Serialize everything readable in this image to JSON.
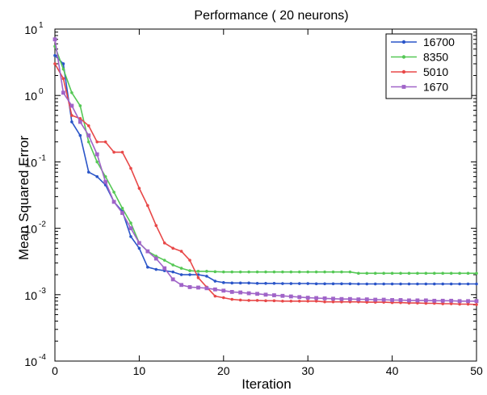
{
  "chart_data": {
    "type": "line",
    "title": "Performance ( 20 neurons)",
    "xlabel": "Iteration",
    "ylabel": "Mean Squared Error",
    "y_scale": "log",
    "xlim": [
      0,
      50
    ],
    "ylim": [
      0.0001,
      10
    ],
    "x_ticks": [
      0,
      10,
      20,
      30,
      40,
      50
    ],
    "y_ticks": [
      {
        "value": 0.0001,
        "base": "10",
        "exp": "-4"
      },
      {
        "value": 0.001,
        "base": "10",
        "exp": "-3"
      },
      {
        "value": 0.01,
        "base": "10",
        "exp": "-2"
      },
      {
        "value": 0.1,
        "base": "10",
        "exp": "-1"
      },
      {
        "value": 1,
        "base": "10",
        "exp": "0"
      },
      {
        "value": 10,
        "base": "10",
        "exp": "1"
      }
    ],
    "grid": false,
    "legend_position": "top-right",
    "series": [
      {
        "name": "16700",
        "color": "#2a55c8",
        "marker": "dot",
        "x": [
          0,
          1,
          2,
          3,
          4,
          5,
          6,
          7,
          8,
          9,
          10,
          11,
          12,
          13,
          14,
          15,
          16,
          17,
          18,
          19,
          20,
          21,
          22,
          23,
          24,
          25,
          26,
          27,
          28,
          29,
          30,
          31,
          32,
          33,
          34,
          35,
          36,
          37,
          38,
          39,
          40,
          41,
          42,
          43,
          44,
          45,
          46,
          47,
          48,
          49,
          50
        ],
        "y": [
          4.0,
          3.0,
          0.4,
          0.25,
          0.07,
          0.06,
          0.045,
          0.025,
          0.018,
          0.0075,
          0.005,
          0.0026,
          0.0024,
          0.0023,
          0.0022,
          0.002,
          0.002,
          0.002,
          0.0019,
          0.0016,
          0.00152,
          0.0015,
          0.0015,
          0.0015,
          0.00148,
          0.00148,
          0.00148,
          0.00147,
          0.00147,
          0.00147,
          0.00147,
          0.00146,
          0.00146,
          0.00146,
          0.00146,
          0.00146,
          0.00145,
          0.00145,
          0.00145,
          0.00145,
          0.00145,
          0.00145,
          0.00145,
          0.00145,
          0.00145,
          0.00145,
          0.00145,
          0.00145,
          0.00145,
          0.00145,
          0.00145
        ]
      },
      {
        "name": "8350",
        "color": "#55c855",
        "marker": "dot",
        "x": [
          0,
          1,
          2,
          3,
          4,
          5,
          6,
          7,
          8,
          9,
          10,
          11,
          12,
          13,
          14,
          15,
          16,
          17,
          18,
          19,
          20,
          21,
          22,
          23,
          24,
          25,
          26,
          27,
          28,
          29,
          30,
          31,
          32,
          33,
          34,
          35,
          36,
          37,
          38,
          39,
          40,
          41,
          42,
          43,
          44,
          45,
          46,
          47,
          48,
          49,
          50
        ],
        "y": [
          5.5,
          2.5,
          1.1,
          0.7,
          0.2,
          0.1,
          0.06,
          0.035,
          0.02,
          0.012,
          0.006,
          0.0045,
          0.0038,
          0.0033,
          0.0028,
          0.0025,
          0.0023,
          0.00225,
          0.00225,
          0.00222,
          0.0022,
          0.0022,
          0.0022,
          0.0022,
          0.0022,
          0.0022,
          0.0022,
          0.0022,
          0.0022,
          0.0022,
          0.0022,
          0.0022,
          0.0022,
          0.0022,
          0.0022,
          0.0022,
          0.0021,
          0.0021,
          0.0021,
          0.0021,
          0.0021,
          0.0021,
          0.0021,
          0.0021,
          0.0021,
          0.0021,
          0.0021,
          0.0021,
          0.0021,
          0.0021,
          0.0021
        ]
      },
      {
        "name": "5010",
        "color": "#e84848",
        "marker": "dot",
        "x": [
          0,
          1,
          2,
          3,
          4,
          5,
          6,
          7,
          8,
          9,
          10,
          11,
          12,
          13,
          14,
          15,
          16,
          17,
          18,
          19,
          20,
          21,
          22,
          23,
          24,
          25,
          26,
          27,
          28,
          29,
          30,
          31,
          32,
          33,
          34,
          35,
          36,
          37,
          38,
          39,
          40,
          41,
          42,
          43,
          44,
          45,
          46,
          47,
          48,
          49,
          50
        ],
        "y": [
          3.0,
          1.8,
          0.5,
          0.45,
          0.35,
          0.2,
          0.2,
          0.14,
          0.14,
          0.08,
          0.04,
          0.022,
          0.011,
          0.006,
          0.005,
          0.0045,
          0.0033,
          0.0018,
          0.0013,
          0.00095,
          0.0009,
          0.00085,
          0.00083,
          0.00082,
          0.00082,
          0.00081,
          0.00081,
          0.0008,
          0.0008,
          0.0008,
          0.0008,
          0.0008,
          0.00078,
          0.00078,
          0.00078,
          0.00078,
          0.00078,
          0.00077,
          0.00077,
          0.00077,
          0.00076,
          0.00076,
          0.00075,
          0.00075,
          0.00074,
          0.00074,
          0.00073,
          0.00073,
          0.00072,
          0.00072,
          0.00071
        ]
      },
      {
        "name": "1670",
        "color": "#a064c8",
        "marker": "square",
        "x": [
          0,
          1,
          2,
          3,
          4,
          5,
          6,
          7,
          8,
          9,
          10,
          11,
          12,
          13,
          14,
          15,
          16,
          17,
          18,
          19,
          20,
          21,
          22,
          23,
          24,
          25,
          26,
          27,
          28,
          29,
          30,
          31,
          32,
          33,
          34,
          35,
          36,
          37,
          38,
          39,
          40,
          41,
          42,
          43,
          44,
          45,
          46,
          47,
          48,
          49,
          50
        ],
        "y": [
          7.0,
          1.1,
          0.7,
          0.4,
          0.25,
          0.13,
          0.05,
          0.025,
          0.017,
          0.01,
          0.006,
          0.0045,
          0.0035,
          0.0025,
          0.0017,
          0.0014,
          0.0013,
          0.00128,
          0.00125,
          0.0012,
          0.00115,
          0.0011,
          0.00108,
          0.00105,
          0.00103,
          0.001,
          0.00098,
          0.00096,
          0.00094,
          0.00092,
          0.0009,
          0.00089,
          0.00088,
          0.00087,
          0.00086,
          0.00086,
          0.00085,
          0.00085,
          0.00084,
          0.00084,
          0.00083,
          0.00083,
          0.00082,
          0.00082,
          0.00082,
          0.00081,
          0.00081,
          0.00081,
          0.0008,
          0.0008,
          0.0008
        ]
      }
    ]
  }
}
